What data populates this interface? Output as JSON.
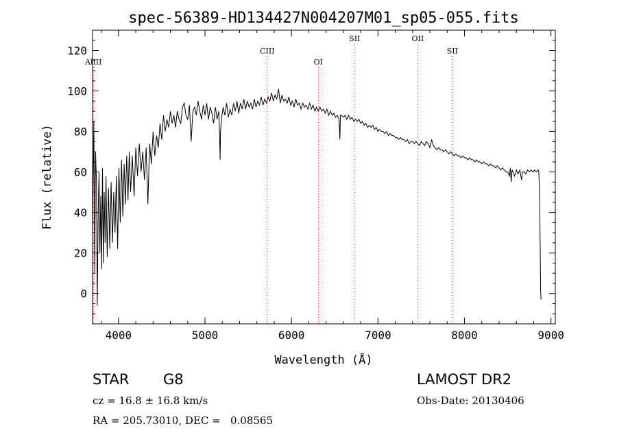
{
  "chart_data": {
    "type": "line",
    "title": "spec-56389-HD134427N004207M01_sp05-055.fits",
    "xlabel": "Wavelength (Å)",
    "ylabel": "Flux (relative)",
    "xlim": [
      3700,
      9050
    ],
    "ylim": [
      -15,
      130
    ],
    "xticks": [
      4000,
      5000,
      6000,
      7000,
      8000,
      9000
    ],
    "yticks": [
      0,
      20,
      40,
      60,
      80,
      100,
      120
    ],
    "grid": false,
    "line_color": "#000000",
    "series": [
      {
        "points": [
          [
            3700,
            30
          ],
          [
            3715,
            85
          ],
          [
            3725,
            10
          ],
          [
            3735,
            70
          ],
          [
            3745,
            55
          ],
          [
            3755,
            -6
          ],
          [
            3765,
            40
          ],
          [
            3775,
            60
          ],
          [
            3785,
            20
          ],
          [
            3795,
            48
          ],
          [
            3805,
            12
          ],
          [
            3815,
            62
          ],
          [
            3825,
            15
          ],
          [
            3835,
            50
          ],
          [
            3845,
            25
          ],
          [
            3855,
            58
          ],
          [
            3870,
            18
          ],
          [
            3885,
            52
          ],
          [
            3900,
            22
          ],
          [
            3915,
            55
          ],
          [
            3930,
            25
          ],
          [
            3945,
            50
          ],
          [
            3960,
            30
          ],
          [
            3975,
            58
          ],
          [
            3990,
            22
          ],
          [
            4005,
            62
          ],
          [
            4020,
            35
          ],
          [
            4035,
            66
          ],
          [
            4050,
            38
          ],
          [
            4065,
            64
          ],
          [
            4080,
            44
          ],
          [
            4095,
            68
          ],
          [
            4110,
            46
          ],
          [
            4125,
            70
          ],
          [
            4140,
            50
          ],
          [
            4160,
            68
          ],
          [
            4180,
            48
          ],
          [
            4200,
            72
          ],
          [
            4220,
            58
          ],
          [
            4240,
            74
          ],
          [
            4260,
            60
          ],
          [
            4280,
            70
          ],
          [
            4300,
            56
          ],
          [
            4320,
            72
          ],
          [
            4340,
            44
          ],
          [
            4360,
            74
          ],
          [
            4380,
            64
          ],
          [
            4400,
            80
          ],
          [
            4420,
            68
          ],
          [
            4440,
            78
          ],
          [
            4460,
            72
          ],
          [
            4480,
            84
          ],
          [
            4500,
            76
          ],
          [
            4520,
            88
          ],
          [
            4540,
            80
          ],
          [
            4560,
            86
          ],
          [
            4580,
            82
          ],
          [
            4600,
            90
          ],
          [
            4620,
            84
          ],
          [
            4640,
            88
          ],
          [
            4660,
            82
          ],
          [
            4680,
            90
          ],
          [
            4700,
            86
          ],
          [
            4720,
            84
          ],
          [
            4740,
            92
          ],
          [
            4760,
            94
          ],
          [
            4780,
            88
          ],
          [
            4800,
            86
          ],
          [
            4820,
            93
          ],
          [
            4840,
            75
          ],
          [
            4860,
            90
          ],
          [
            4880,
            92
          ],
          [
            4900,
            88
          ],
          [
            4920,
            95
          ],
          [
            4940,
            90
          ],
          [
            4960,
            86
          ],
          [
            4980,
            93
          ],
          [
            5000,
            88
          ],
          [
            5020,
            94
          ],
          [
            5040,
            86
          ],
          [
            5060,
            92
          ],
          [
            5080,
            89
          ],
          [
            5100,
            84
          ],
          [
            5120,
            92
          ],
          [
            5140,
            86
          ],
          [
            5160,
            90
          ],
          [
            5170,
            75
          ],
          [
            5175,
            66
          ],
          [
            5180,
            80
          ],
          [
            5190,
            86
          ],
          [
            5210,
            92
          ],
          [
            5230,
            88
          ],
          [
            5250,
            94
          ],
          [
            5270,
            87
          ],
          [
            5290,
            91
          ],
          [
            5310,
            88
          ],
          [
            5330,
            94
          ],
          [
            5350,
            90
          ],
          [
            5370,
            95
          ],
          [
            5390,
            89
          ],
          [
            5410,
            94
          ],
          [
            5430,
            91
          ],
          [
            5450,
            96
          ],
          [
            5470,
            91
          ],
          [
            5490,
            95
          ],
          [
            5510,
            92
          ],
          [
            5530,
            94
          ],
          [
            5550,
            91
          ],
          [
            5570,
            96
          ],
          [
            5590,
            92
          ],
          [
            5610,
            95
          ],
          [
            5630,
            93
          ],
          [
            5650,
            97
          ],
          [
            5670,
            93
          ],
          [
            5690,
            96
          ],
          [
            5710,
            94
          ],
          [
            5730,
            97
          ],
          [
            5750,
            95
          ],
          [
            5770,
            99
          ],
          [
            5790,
            95
          ],
          [
            5810,
            98
          ],
          [
            5830,
            96
          ],
          [
            5850,
            101
          ],
          [
            5870,
            94
          ],
          [
            5890,
            98
          ],
          [
            5910,
            95
          ],
          [
            5930,
            96
          ],
          [
            5950,
            94
          ],
          [
            5970,
            97
          ],
          [
            5990,
            93
          ],
          [
            6010,
            95
          ],
          [
            6030,
            92
          ],
          [
            6050,
            96
          ],
          [
            6070,
            93
          ],
          [
            6090,
            94
          ],
          [
            6110,
            91
          ],
          [
            6130,
            94
          ],
          [
            6150,
            92
          ],
          [
            6170,
            93
          ],
          [
            6190,
            91
          ],
          [
            6210,
            94
          ],
          [
            6230,
            91
          ],
          [
            6250,
            93
          ],
          [
            6270,
            90
          ],
          [
            6290,
            92
          ],
          [
            6310,
            90
          ],
          [
            6330,
            92
          ],
          [
            6350,
            90
          ],
          [
            6370,
            91
          ],
          [
            6390,
            89
          ],
          [
            6410,
            91
          ],
          [
            6430,
            88
          ],
          [
            6450,
            90
          ],
          [
            6470,
            88
          ],
          [
            6490,
            89
          ],
          [
            6510,
            87
          ],
          [
            6530,
            88
          ],
          [
            6550,
            86
          ],
          [
            6560,
            76
          ],
          [
            6565,
            88
          ],
          [
            6580,
            88
          ],
          [
            6600,
            87
          ],
          [
            6620,
            88
          ],
          [
            6640,
            86
          ],
          [
            6660,
            88
          ],
          [
            6680,
            86
          ],
          [
            6700,
            87
          ],
          [
            6720,
            85
          ],
          [
            6740,
            86
          ],
          [
            6760,
            85
          ],
          [
            6780,
            86
          ],
          [
            6800,
            84
          ],
          [
            6820,
            85
          ],
          [
            6840,
            83
          ],
          [
            6860,
            84
          ],
          [
            6880,
            82
          ],
          [
            6900,
            83
          ],
          [
            6920,
            82
          ],
          [
            6940,
            83
          ],
          [
            6960,
            81
          ],
          [
            6980,
            82
          ],
          [
            7000,
            80
          ],
          [
            7020,
            81
          ],
          [
            7040,
            80
          ],
          [
            7060,
            80
          ],
          [
            7080,
            79
          ],
          [
            7100,
            80
          ],
          [
            7120,
            78
          ],
          [
            7140,
            79
          ],
          [
            7160,
            78
          ],
          [
            7180,
            78
          ],
          [
            7200,
            77
          ],
          [
            7220,
            77
          ],
          [
            7240,
            76
          ],
          [
            7260,
            77
          ],
          [
            7280,
            76
          ],
          [
            7300,
            76
          ],
          [
            7320,
            75
          ],
          [
            7340,
            76
          ],
          [
            7360,
            74
          ],
          [
            7380,
            75
          ],
          [
            7400,
            75
          ],
          [
            7420,
            74
          ],
          [
            7440,
            75
          ],
          [
            7460,
            74
          ],
          [
            7480,
            73
          ],
          [
            7500,
            75
          ],
          [
            7520,
            74
          ],
          [
            7540,
            73
          ],
          [
            7560,
            75
          ],
          [
            7580,
            74
          ],
          [
            7600,
            72
          ],
          [
            7620,
            76
          ],
          [
            7640,
            73
          ],
          [
            7660,
            72
          ],
          [
            7680,
            71
          ],
          [
            7700,
            72
          ],
          [
            7720,
            71
          ],
          [
            7740,
            71
          ],
          [
            7760,
            70
          ],
          [
            7780,
            71
          ],
          [
            7800,
            70
          ],
          [
            7820,
            69
          ],
          [
            7840,
            70
          ],
          [
            7860,
            69
          ],
          [
            7880,
            68
          ],
          [
            7900,
            69
          ],
          [
            7920,
            68
          ],
          [
            7940,
            68
          ],
          [
            7960,
            67
          ],
          [
            7980,
            68
          ],
          [
            8000,
            67
          ],
          [
            8020,
            67
          ],
          [
            8040,
            66
          ],
          [
            8060,
            67
          ],
          [
            8080,
            66
          ],
          [
            8100,
            66
          ],
          [
            8120,
            65
          ],
          [
            8140,
            66
          ],
          [
            8160,
            65
          ],
          [
            8180,
            65
          ],
          [
            8200,
            64
          ],
          [
            8220,
            65
          ],
          [
            8240,
            64
          ],
          [
            8260,
            64
          ],
          [
            8280,
            63
          ],
          [
            8300,
            64
          ],
          [
            8320,
            63
          ],
          [
            8340,
            63
          ],
          [
            8360,
            62
          ],
          [
            8380,
            63
          ],
          [
            8400,
            62
          ],
          [
            8420,
            61
          ],
          [
            8440,
            62
          ],
          [
            8460,
            61
          ],
          [
            8480,
            60
          ],
          [
            8500,
            60
          ],
          [
            8520,
            58
          ],
          [
            8530,
            62
          ],
          [
            8540,
            55
          ],
          [
            8550,
            61
          ],
          [
            8560,
            60
          ],
          [
            8580,
            58
          ],
          [
            8600,
            61
          ],
          [
            8620,
            59
          ],
          [
            8640,
            61
          ],
          [
            8660,
            56
          ],
          [
            8670,
            60
          ],
          [
            8690,
            60
          ],
          [
            8710,
            59
          ],
          [
            8730,
            61
          ],
          [
            8750,
            60
          ],
          [
            8770,
            61
          ],
          [
            8790,
            60
          ],
          [
            8810,
            61
          ],
          [
            8830,
            60
          ],
          [
            8850,
            61
          ],
          [
            8860,
            60
          ],
          [
            8870,
            45
          ],
          [
            8880,
            2
          ],
          [
            8885,
            -3
          ]
        ]
      }
    ],
    "line_markers": [
      {
        "label": "AlIII",
        "x": 3710,
        "color": "#ff0000"
      },
      {
        "label": "CIII",
        "x": 5720,
        "color": "#ff0000"
      },
      {
        "label": "OI",
        "x": 6310,
        "color": "#ff0000"
      },
      {
        "label": "SII",
        "x": 6730,
        "color": "#ff0000"
      },
      {
        "label": "OII",
        "x": 7460,
        "color": "#ff0000"
      },
      {
        "label": "SII",
        "x": 7860,
        "color": "#ff0000"
      }
    ]
  },
  "info": {
    "class": "STAR",
    "subclass": "G8",
    "survey": "LAMOST DR2",
    "redshift": "cz = 16.8 ± 16.8 km/s",
    "obs_date": "Obs-Date: 20130406",
    "coords": "RA = 205.73010, DEC =   0.08565"
  }
}
